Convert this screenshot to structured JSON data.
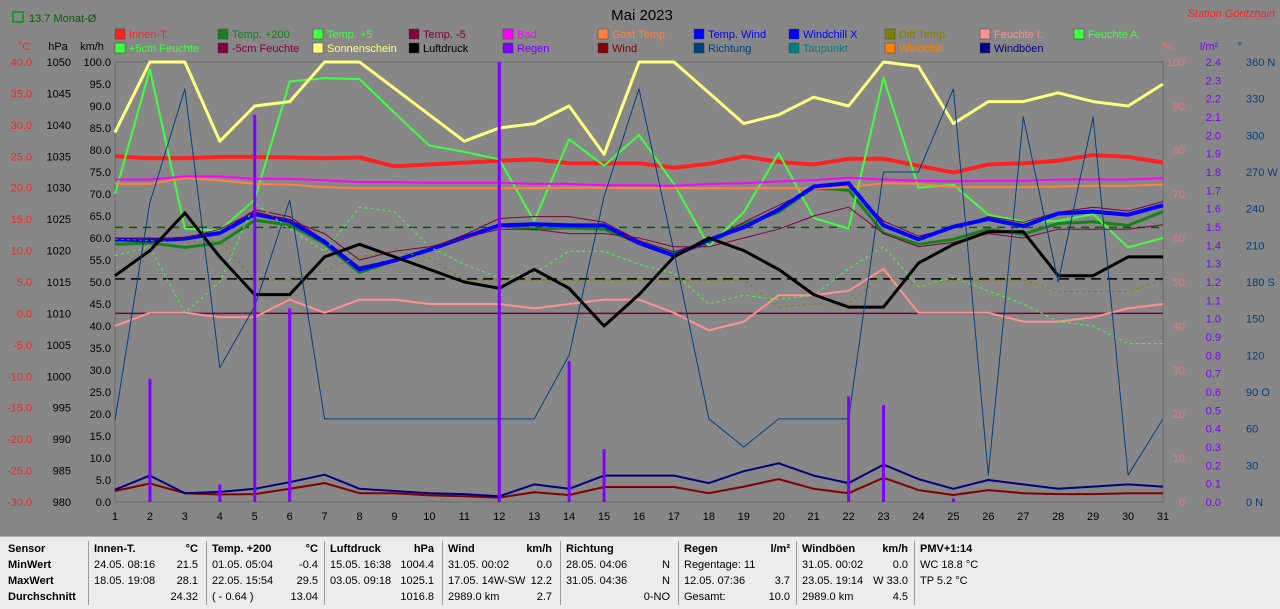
{
  "chart_data": {
    "type": "line",
    "title": "Mai 2023",
    "station": "Station Göritzhain",
    "top_left_note": "13.7 Monat-Ø",
    "x": [
      1,
      2,
      3,
      4,
      5,
      6,
      7,
      8,
      9,
      10,
      11,
      12,
      13,
      14,
      15,
      16,
      17,
      18,
      19,
      20,
      21,
      22,
      23,
      24,
      25,
      26,
      27,
      28,
      29,
      30,
      31
    ],
    "axes": {
      "temp_c": {
        "label": "°C",
        "ticks": [
          "40.0",
          "35.0",
          "30.0",
          "25.0",
          "20.0",
          "15.0",
          "10.0",
          "5.0",
          "0.0",
          "-5.0",
          "-10.0",
          "-15.0",
          "-20.0",
          "-25.0",
          "-30.0"
        ],
        "range": [
          -30,
          40
        ]
      },
      "pressure_hpa": {
        "label": "hPa",
        "ticks": [
          "1050",
          "1045",
          "1040",
          "1035",
          "1030",
          "1025",
          "1020",
          "1015",
          "1010",
          "1005",
          "1000",
          "995",
          "990",
          "985",
          "980"
        ],
        "range": [
          980,
          1050
        ]
      },
      "wind_kmh": {
        "label": "km/h",
        "ticks": [
          "100.0",
          "95.0",
          "90.0",
          "85.0",
          "80.0",
          "75.0",
          "70.0",
          "65.0",
          "60.0",
          "55.0",
          "50.0",
          "45.0",
          "40.0",
          "35.0",
          "30.0",
          "25.0",
          "20.0",
          "15.0",
          "10.0",
          "5.0",
          "0.0"
        ],
        "range": [
          0,
          100
        ]
      },
      "percent": {
        "label": "%",
        "ticks": [
          "100",
          "90",
          "80",
          "70",
          "60",
          "50",
          "40",
          "30",
          "20",
          "10",
          "0"
        ],
        "range": [
          0,
          100
        ]
      },
      "rain": {
        "label": "l/m²",
        "ticks": [
          "2.4",
          "2.3",
          "2.2",
          "2.1",
          "2.0",
          "1.9",
          "1.8",
          "1.7",
          "1.6",
          "1.5",
          "1.4",
          "1.3",
          "1.2",
          "1.1",
          "1.0",
          "0.9",
          "0.8",
          "0.7",
          "0.6",
          "0.5",
          "0.4",
          "0.3",
          "0.2",
          "0.1",
          "0.0"
        ],
        "range": [
          0,
          2.5
        ]
      },
      "direction": {
        "label": "°",
        "ticks": [
          "360 N",
          "330",
          "300",
          "270 W",
          "240",
          "210",
          "180 S",
          "150",
          "120",
          "90 O",
          "60",
          "30",
          "0 N"
        ],
        "range": [
          0,
          360
        ]
      }
    },
    "legend": [
      {
        "name": "Innen-T.",
        "color": "#ff2020"
      },
      {
        "name": "Temp. +200",
        "color": "#18801c"
      },
      {
        "name": "Temp. +5",
        "color": "#40ff40"
      },
      {
        "name": "Temp. -5",
        "color": "#800040"
      },
      {
        "name": "Bad",
        "color": "#ff00ff"
      },
      {
        "name": "Gast Temp",
        "color": "#ff8040"
      },
      {
        "name": "Temp. Wind",
        "color": "#0000ff"
      },
      {
        "name": "Windchill X",
        "color": "#0000ff"
      },
      {
        "name": "Diff Temp.",
        "color": "#808000"
      },
      {
        "name": "Feuchte I.",
        "color": "#ff9090"
      },
      {
        "name": "Feuchte A.",
        "color": "#40ff40"
      },
      {
        "name": "+5cm Feuchte",
        "color": "#40ff40"
      },
      {
        "name": "-5cm Feuchte",
        "color": "#800040"
      },
      {
        "name": "Sonnenschein",
        "color": "#ffff80"
      },
      {
        "name": "Luftdruck",
        "color": "#000000"
      },
      {
        "name": "Regen",
        "color": "#8000ff"
      },
      {
        "name": "Wind",
        "color": "#800000"
      },
      {
        "name": "Richtung",
        "color": "#004080"
      },
      {
        "name": "Taupunkt",
        "color": "#008080"
      },
      {
        "name": "Windchill",
        "color": "#ff8000"
      },
      {
        "name": "Windböen",
        "color": "#000080"
      }
    ],
    "series": [
      {
        "name": "Innen-T.",
        "color": "#ff2020",
        "axis": "temp_c",
        "width": 4,
        "values": [
          25.0,
          24.7,
          24.7,
          24.9,
          24.9,
          24.8,
          24.7,
          24.8,
          23.4,
          23.7,
          24.0,
          24.3,
          24.5,
          23.9,
          23.9,
          23.9,
          23.2,
          23.8,
          25.0,
          24.1,
          23.7,
          24.6,
          24.6,
          23.5,
          22.4,
          23.7,
          23.9,
          24.3,
          25.2,
          24.9,
          24.0
        ]
      },
      {
        "name": "Temp. +200",
        "color": "#18801c",
        "axis": "temp_c",
        "width": 3,
        "values": [
          11.0,
          11.2,
          10.5,
          11.2,
          14.8,
          14.1,
          11.1,
          6.5,
          8.4,
          10.3,
          12.2,
          14.0,
          13.4,
          13.6,
          13.4,
          11.2,
          9.6,
          11.1,
          14.2,
          16.1,
          20.0,
          19.6,
          12.8,
          11.0,
          11.8,
          13.4,
          12.6,
          14.3,
          14.6,
          14.0,
          16.2
        ]
      },
      {
        "name": "Temp. +5",
        "color": "#40ff40",
        "axis": "temp_c",
        "width": 2,
        "values": [
          19.0,
          38.8,
          13.5,
          13.2,
          18.1,
          36.9,
          37.4,
          37.3,
          31.9,
          26.7,
          25.7,
          24.5,
          14.7,
          27.7,
          23.5,
          28.4,
          20.6,
          10.7,
          16.1,
          25.5,
          15.2,
          13.5,
          37.5,
          20.0,
          20.5,
          15.7,
          14.6,
          14.7,
          15.8,
          10.5,
          12.0
        ]
      },
      {
        "name": "Temp. -5",
        "color": "#800040",
        "axis": "temp_c",
        "width": 1,
        "values": [
          11.5,
          11.6,
          11.7,
          12.7,
          16.5,
          15.4,
          11.6,
          7.4,
          8.6,
          10.3,
          12.5,
          15.1,
          15.4,
          15.4,
          14.5,
          11.6,
          9.8,
          11.6,
          14.5,
          17.2,
          19.8,
          20.2,
          14.7,
          12.3,
          13.6,
          15.4,
          14.5,
          16.1,
          16.9,
          16.3,
          17.8
        ]
      },
      {
        "name": "Bad",
        "color": "#ff00ff",
        "axis": "temp_c",
        "width": 2,
        "values": [
          21.3,
          21.3,
          21.8,
          21.8,
          21.4,
          21.4,
          21.2,
          20.9,
          20.9,
          20.8,
          20.8,
          20.8,
          20.6,
          20.6,
          20.4,
          20.4,
          20.3,
          20.6,
          20.7,
          21.0,
          21.2,
          21.6,
          21.3,
          21.1,
          21.0,
          21.1,
          21.1,
          21.3,
          21.3,
          21.3,
          21.5
        ]
      },
      {
        "name": "Gast Temp",
        "color": "#ff8040",
        "axis": "temp_c",
        "width": 2,
        "values": [
          20.6,
          20.6,
          21.5,
          21.2,
          20.6,
          20.5,
          20.1,
          19.9,
          19.9,
          19.9,
          19.9,
          19.9,
          19.9,
          20.0,
          20.0,
          19.9,
          19.9,
          19.9,
          19.9,
          19.9,
          19.9,
          20.1,
          20.7,
          20.6,
          20.1,
          20.1,
          20.1,
          20.2,
          20.3,
          20.3,
          20.5
        ]
      },
      {
        "name": "Temp. Wind",
        "color": "#0000ff",
        "axis": "temp_c",
        "width": 4,
        "values": [
          11.8,
          11.6,
          11.9,
          12.8,
          15.8,
          14.7,
          11.4,
          7.0,
          8.4,
          10.1,
          12.1,
          14.0,
          14.2,
          14.0,
          14.0,
          11.2,
          9.2,
          11.7,
          13.7,
          16.5,
          20.2,
          20.7,
          14.0,
          11.8,
          13.8,
          15.0,
          13.9,
          15.9,
          16.2,
          15.7,
          17.2
        ]
      },
      {
        "name": "Windchill X",
        "color": "#0000ff",
        "axis": "temp_c",
        "width": 1,
        "values": [
          11.8,
          11.6,
          11.9,
          12.8,
          15.8,
          14.7,
          11.4,
          7.0,
          8.4,
          10.1,
          12.1,
          14.0,
          14.2,
          14.0,
          14.0,
          11.2,
          9.2,
          11.7,
          13.7,
          16.5,
          20.2,
          20.7,
          14.0,
          11.8,
          13.8,
          15.0,
          13.9,
          15.9,
          16.2,
          15.7,
          17.2
        ]
      },
      {
        "name": "Diff Temp.",
        "color": "#808000",
        "axis": "temp_c",
        "width": 1,
        "dash": "3,3",
        "values": [
          11.8,
          11.6,
          11.3,
          11.5,
          5.3,
          5.3,
          6.9,
          9.0,
          10.0,
          8.8,
          5.3,
          5.3,
          5.3,
          5.3,
          5.3,
          5.3,
          5.3,
          5.3,
          5.3,
          1.0,
          1.5,
          1.5,
          6.2,
          4.5,
          5.3,
          5.3,
          5.3,
          3.5,
          3.5,
          3.5,
          5.3
        ]
      },
      {
        "name": "Feuchte I.",
        "color": "#ff9090",
        "axis": "percent",
        "width": 2,
        "values": [
          40,
          43,
          43,
          42,
          42,
          46,
          43,
          46,
          46,
          45,
          45,
          45,
          44,
          45,
          46,
          46,
          43,
          39,
          41,
          47,
          47,
          48,
          53,
          43,
          43,
          43,
          41,
          41,
          42,
          44,
          45
        ]
      },
      {
        "name": "Feuchte A.",
        "color": "#40ff40",
        "axis": "percent",
        "width": 1,
        "dash": "3,3",
        "values": [
          56,
          58,
          43,
          50,
          68,
          62,
          57,
          67,
          66,
          58,
          54,
          51,
          52,
          57,
          57,
          54,
          52,
          45,
          47,
          46,
          47,
          53,
          58,
          49,
          51,
          48,
          45,
          41,
          40,
          36,
          36
        ]
      },
      {
        "name": "-5cm Feuchte",
        "color": "#800040",
        "axis": "percent",
        "width": 1,
        "values": [
          60,
          60,
          60,
          62,
          66,
          64,
          61,
          55,
          57,
          58,
          60,
          62,
          62,
          61,
          61,
          60,
          58,
          58,
          60,
          62,
          65,
          67,
          61,
          58,
          59,
          61,
          60,
          62,
          62,
          62,
          63
        ]
      },
      {
        "name": "Sonnenschein",
        "color": "#ffff80",
        "axis": "percent",
        "width": 3,
        "values": [
          84,
          100,
          100,
          82,
          90,
          91,
          100,
          100,
          94,
          88,
          82,
          85,
          86,
          90,
          79,
          100,
          100,
          93,
          86,
          88,
          92,
          90,
          100,
          99,
          86,
          91,
          91,
          93,
          91,
          90,
          95
        ]
      },
      {
        "name": "Luftdruck",
        "color": "#000000",
        "axis": "pressure_hpa",
        "width": 3,
        "values": [
          1016,
          1020,
          1026,
          1019,
          1013,
          1013,
          1019,
          1021,
          1019,
          1017,
          1015,
          1014,
          1017,
          1014,
          1008,
          1013,
          1019,
          1022,
          1020,
          1017,
          1013,
          1011,
          1011,
          1018,
          1021,
          1023,
          1023,
          1016,
          1016,
          1019,
          1019
        ]
      },
      {
        "name": "Wind",
        "color": "#800000",
        "axis": "wind_kmh",
        "width": 2,
        "values": [
          2.5,
          4.2,
          2.0,
          1.7,
          1.8,
          3.0,
          4.3,
          2.0,
          2.0,
          1.5,
          1.3,
          1.0,
          2.2,
          1.6,
          3.4,
          3.4,
          3.4,
          2.0,
          3.5,
          5.2,
          3.0,
          2.0,
          5.5,
          2.7,
          1.6,
          2.7,
          2.0,
          1.8,
          1.8,
          2.0,
          2.0
        ]
      },
      {
        "name": "Windböen",
        "color": "#000080",
        "axis": "wind_kmh",
        "width": 2,
        "values": [
          2.8,
          6.0,
          2.0,
          2.3,
          3.0,
          4.5,
          6.2,
          3.0,
          2.5,
          2.0,
          1.8,
          1.3,
          4.0,
          3.0,
          6.0,
          6.0,
          6.0,
          4.3,
          7.0,
          8.8,
          6.0,
          4.3,
          8.5,
          5.2,
          3.0,
          5.0,
          4.0,
          3.0,
          3.5,
          4.0,
          3.5
        ]
      },
      {
        "name": "Richtung",
        "color": "#004080",
        "axis": "direction",
        "width": 1,
        "values": [
          67,
          245,
          338,
          110,
          160,
          247,
          68,
          68,
          68,
          68,
          68,
          68,
          68,
          120,
          250,
          338,
          205,
          68,
          45,
          68,
          68,
          68,
          270,
          270,
          338,
          22,
          315,
          180,
          315,
          22,
          68
        ]
      },
      {
        "name": "Regen",
        "color": "#8000ff",
        "axis": "rain",
        "type": "bar",
        "width": 3,
        "values": [
          0.0,
          0.7,
          0.0,
          0.1,
          2.2,
          1.1,
          0.0,
          0.0,
          0.0,
          0.0,
          0.0,
          2.5,
          0.0,
          0.8,
          0.3,
          0.0,
          0.0,
          0.0,
          0.0,
          0.0,
          0.0,
          0.6,
          0.55,
          0.0,
          0.02,
          0.0,
          0.0,
          0.0,
          0.0,
          0.0,
          0.0
        ]
      }
    ],
    "reference_lines": [
      {
        "axis": "temp_c",
        "value": 13.7,
        "color": "#006000",
        "dash": "8,6"
      },
      {
        "axis": "temp_c",
        "value": 0,
        "color": "#800040",
        "dash": ""
      },
      {
        "axis": "temp_c",
        "value": 5.5,
        "color": "#000000",
        "dash": "10,6"
      }
    ]
  },
  "stats": {
    "sensor": {
      "header": "Sensor",
      "r1": "MinWert",
      "r2": "MaxWert",
      "r3": "Durchschnitt"
    },
    "innen": {
      "header": "Innen-T.",
      "unit": "°C",
      "r1a": "24.05.  08:16",
      "r1b": "21.5",
      "r2a": "18.05.  19:08",
      "r2b": "28.1",
      "r3b": "24.32"
    },
    "temp200": {
      "header": "Temp. +200",
      "unit": "°C",
      "r1a": "01.05.  05:04",
      "r1b": "-0.4",
      "r2a": "22.05.  15:54",
      "r2b": "29.5",
      "r3a": "( - 0.64 )",
      "r3b": "13.04"
    },
    "druck": {
      "header": "Luftdruck",
      "unit": "hPa",
      "r1a": "15.05.  16:38",
      "r1b": "1004.4",
      "r2a": "03.05.  09:18",
      "r2b": "1025.1",
      "r3b": "1016.8"
    },
    "wind": {
      "header": "Wind",
      "unit": "km/h",
      "r1a": "31.05.  00:02",
      "r1b": "0.0",
      "r2a": "17.05.  14W-SW",
      "r2b": "12.2",
      "r3a": "2989.0 km",
      "r3b": "2.7"
    },
    "richtung": {
      "header": "Richtung",
      "r1a": "28.05.  04:06",
      "r1b": "N",
      "r2a": "31.05.  04:36",
      "r2b": "N",
      "r3b": "0-NO"
    },
    "regen": {
      "header": "Regen",
      "unit": "l/m²",
      "r1a": "Regentage: 11",
      "r2a": "12.05.  07:36",
      "r2b": "3.7",
      "r3a": "Gesamt:",
      "r3b": "10.0"
    },
    "boeen": {
      "header": "Windböen",
      "unit": "km/h",
      "r1a": "31.05.  00:02",
      "r1b": "0.0",
      "r2a": "23.05.  19:14",
      "r2b": "W 33.0",
      "r3a": "2989.0 km",
      "r3b": "4.5"
    },
    "pmv": {
      "header": "PMV+1:14",
      "r1a": "WC 18.8 °C",
      "r2a": "TP 5.2 °C"
    }
  }
}
